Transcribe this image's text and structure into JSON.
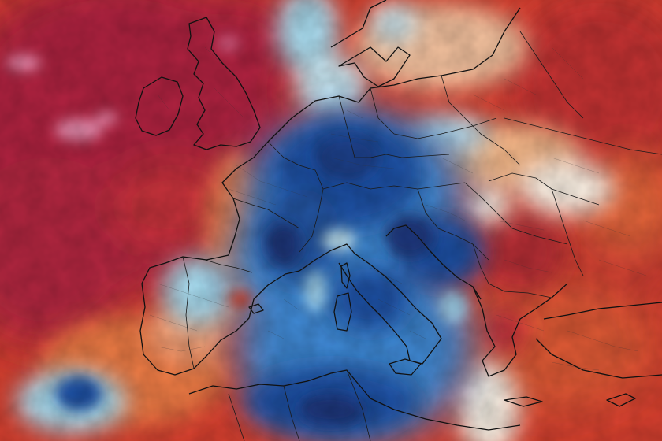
{
  "map": {
    "type": "temperature-anomaly",
    "region": "Europe",
    "colors": {
      "strong_warm": "#b0233f",
      "warm": "#d8402f",
      "mild_warm": "#ef7b45",
      "slight_warm": "#f7b98a",
      "neutral": "#fdf3e6",
      "slight_cool": "#a9dcef",
      "cool": "#3f8ad6",
      "strong_cool": "#1f4fa3",
      "deep_cool": "#1a3679",
      "extreme_warm_spot": "#e88fb1"
    }
  }
}
